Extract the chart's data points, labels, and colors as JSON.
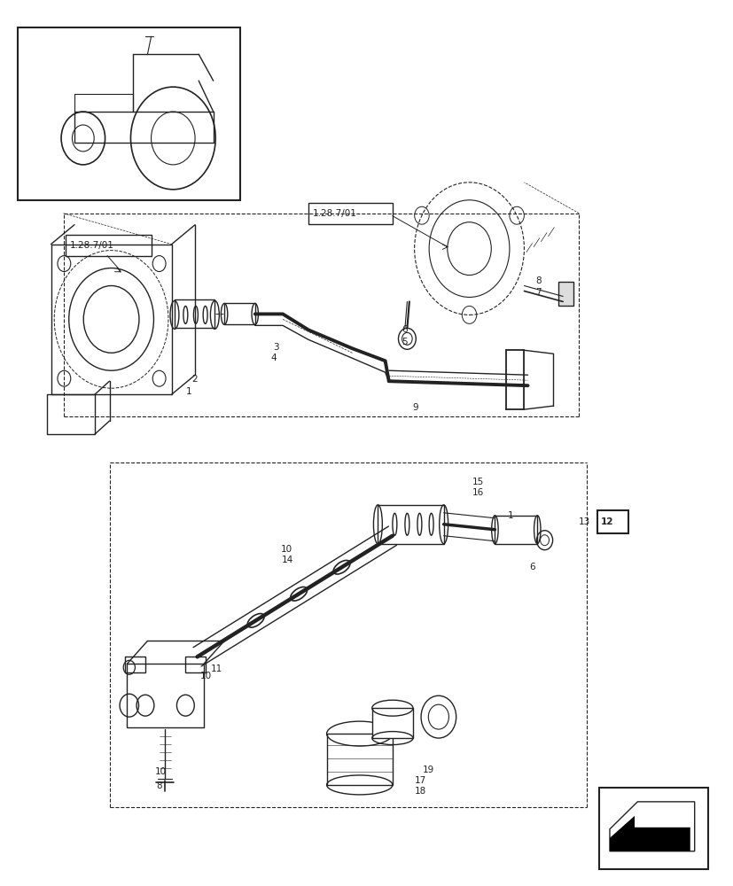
{
  "bg_color": "#ffffff",
  "line_color": "#222222",
  "fig_width": 8.28,
  "fig_height": 10.0,
  "ref_top": "1.28.7/01",
  "ref_left": "1.28.7/01",
  "ref_box": "12",
  "ref_13": "13"
}
